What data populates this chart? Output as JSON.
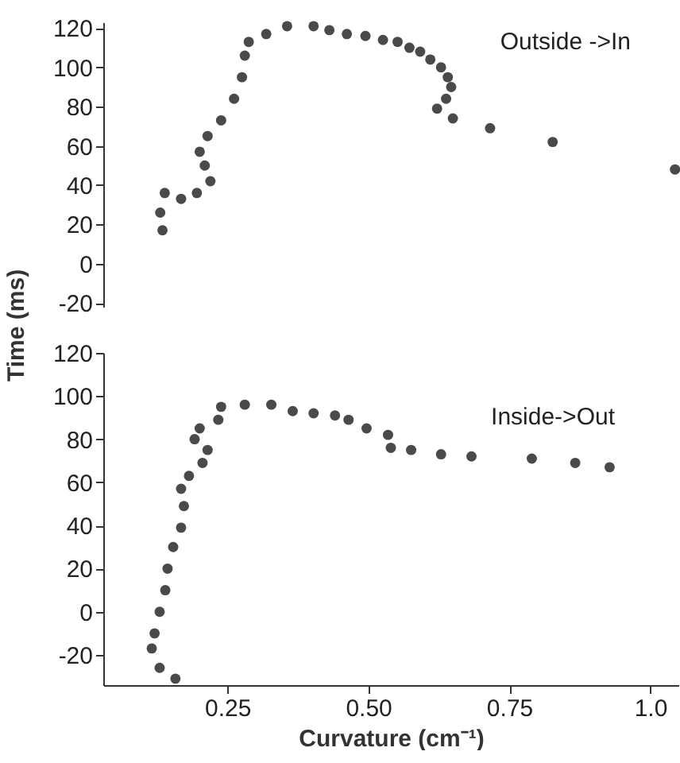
{
  "chart_data": [
    {
      "type": "scatter",
      "ylabel": "Time (ms)",
      "xlim": [
        0.03,
        1.05
      ],
      "ylim": [
        -22,
        123
      ],
      "yticks": [
        -20,
        0,
        20,
        40,
        60,
        80,
        100,
        120
      ],
      "tick_labels": "y",
      "marker": "circle",
      "annotations": [
        "Outside ->In"
      ],
      "series": [
        {
          "color": "#4a4a4a",
          "x": [
            0.135,
            0.131,
            0.139,
            0.168,
            0.196,
            0.22,
            0.21,
            0.201,
            0.215,
            0.239,
            0.262,
            0.276,
            0.281,
            0.288,
            0.319,
            0.356,
            0.403,
            0.431,
            0.462,
            0.495,
            0.526,
            0.552,
            0.573,
            0.592,
            0.61,
            0.629,
            0.641,
            0.647,
            0.638,
            0.622,
            0.65,
            0.716,
            0.827,
            1.044
          ],
          "values": [
            17,
            26,
            36,
            33,
            36,
            42,
            50,
            57,
            65,
            73,
            84,
            95,
            106,
            113,
            117,
            121,
            121,
            119,
            117,
            116,
            114,
            113,
            110,
            108,
            104,
            100,
            95,
            90,
            84,
            79,
            74,
            69,
            62,
            48
          ]
        }
      ]
    },
    {
      "type": "scatter",
      "xlabel": "Curvature (cm⁻¹)",
      "xlim": [
        0.03,
        1.05
      ],
      "xticks": [
        0.25,
        {
          "value": 0.5,
          "label": "0.50"
        },
        0.75,
        {
          "value": 1.0,
          "label": "1.0"
        }
      ],
      "ylim": [
        -34,
        120
      ],
      "yticks": [
        -20,
        0,
        20,
        40,
        60,
        80,
        100,
        120
      ],
      "marker": "circle",
      "annotations": [
        "Inside->Out"
      ],
      "series": [
        {
          "color": "#4a4a4a",
          "x": [
            0.158,
            0.13,
            0.116,
            0.121,
            0.13,
            0.14,
            0.144,
            0.154,
            0.168,
            0.173,
            0.168,
            0.182,
            0.206,
            0.215,
            0.192,
            0.201,
            0.234,
            0.239,
            0.281,
            0.328,
            0.366,
            0.403,
            0.441,
            0.465,
            0.497,
            0.535,
            0.54,
            0.576,
            0.629,
            0.683,
            0.79,
            0.867,
            0.928
          ],
          "values": [
            -31,
            -26,
            -17,
            -10,
            0,
            10,
            20,
            30,
            39,
            49,
            57,
            63,
            69,
            75,
            80,
            85,
            89,
            95,
            96,
            96,
            93,
            92,
            91,
            89,
            85,
            82,
            76,
            75,
            73,
            72,
            71,
            69,
            67
          ]
        }
      ]
    }
  ]
}
